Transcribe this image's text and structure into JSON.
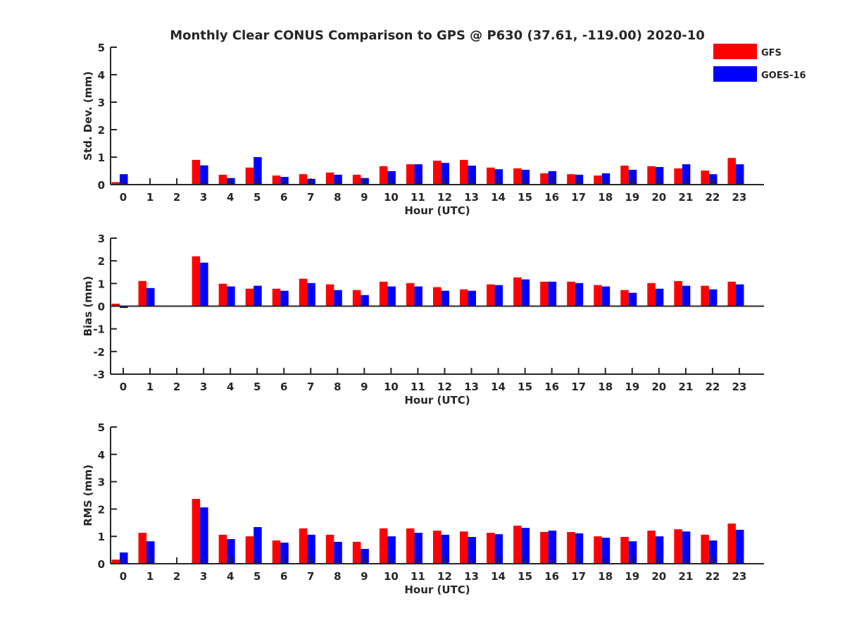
{
  "title": "Monthly Clear CONUS Comparison to GPS @ P630 (37.61, -119.00) 2020-10",
  "colors": {
    "GFS": "#ff0000",
    "GOES-16": "#0000ff",
    "axis": "#262626"
  },
  "legend": {
    "placement": "top-right",
    "entries": [
      "GFS",
      "GOES-16"
    ]
  },
  "chart_data": [
    {
      "type": "bar",
      "ylabel": "Std. Dev. (mm)",
      "xlabel": "Hour (UTC)",
      "ylim": [
        0,
        5
      ],
      "yticks": [
        "0",
        "1",
        "2",
        "3",
        "4",
        "5"
      ],
      "categories": [
        "0",
        "1",
        "2",
        "3",
        "4",
        "5",
        "6",
        "7",
        "8",
        "9",
        "10",
        "11",
        "12",
        "13",
        "14",
        "15",
        "16",
        "17",
        "18",
        "19",
        "20",
        "21",
        "22",
        "23"
      ],
      "series": [
        {
          "name": "GFS",
          "values": [
            0.09,
            null,
            null,
            0.9,
            0.36,
            0.62,
            0.33,
            0.38,
            0.44,
            0.36,
            0.67,
            0.74,
            0.87,
            0.9,
            0.62,
            0.59,
            0.41,
            0.38,
            0.33,
            0.69,
            0.67,
            0.59,
            0.51,
            0.97
          ]
        },
        {
          "name": "GOES-16",
          "values": [
            0.38,
            null,
            null,
            0.7,
            0.24,
            1.0,
            0.28,
            0.21,
            0.36,
            0.24,
            0.49,
            0.74,
            0.79,
            0.69,
            0.56,
            0.54,
            0.49,
            0.36,
            0.41,
            0.54,
            0.64,
            0.74,
            0.38,
            0.74
          ]
        }
      ]
    },
    {
      "type": "bar",
      "ylabel": "Bias (mm)",
      "xlabel": "Hour (UTC)",
      "ylim": [
        -3,
        3
      ],
      "yticks": [
        "-3",
        "-2",
        "-1",
        "0",
        "1",
        "2",
        "3"
      ],
      "categories": [
        "0",
        "1",
        "2",
        "3",
        "4",
        "5",
        "6",
        "7",
        "8",
        "9",
        "10",
        "11",
        "12",
        "13",
        "14",
        "15",
        "16",
        "17",
        "18",
        "19",
        "20",
        "21",
        "22",
        "23"
      ],
      "series": [
        {
          "name": "GFS",
          "values": [
            0.11,
            1.11,
            null,
            2.2,
            0.99,
            0.77,
            0.77,
            1.21,
            0.96,
            0.71,
            1.08,
            1.02,
            0.84,
            0.74,
            0.96,
            1.27,
            1.08,
            1.08,
            0.93,
            0.71,
            1.02,
            1.11,
            0.9,
            1.08
          ]
        },
        {
          "name": "GOES-16",
          "values": [
            -0.08,
            0.8,
            null,
            1.92,
            0.87,
            0.9,
            0.68,
            1.02,
            0.71,
            0.49,
            0.87,
            0.87,
            0.68,
            0.68,
            0.93,
            1.18,
            1.08,
            1.02,
            0.87,
            0.59,
            0.77,
            0.9,
            0.74,
            0.96
          ]
        }
      ]
    },
    {
      "type": "bar",
      "ylabel": "RMS (mm)",
      "xlabel": "Hour (UTC)",
      "ylim": [
        0,
        5
      ],
      "yticks": [
        "0",
        "1",
        "2",
        "3",
        "4",
        "5"
      ],
      "categories": [
        "0",
        "1",
        "2",
        "3",
        "4",
        "5",
        "6",
        "7",
        "8",
        "9",
        "10",
        "11",
        "12",
        "13",
        "14",
        "15",
        "16",
        "17",
        "18",
        "19",
        "20",
        "21",
        "22",
        "23"
      ],
      "series": [
        {
          "name": "GFS",
          "values": [
            0.15,
            1.13,
            null,
            2.37,
            1.06,
            1.0,
            0.85,
            1.29,
            1.06,
            0.8,
            1.29,
            1.29,
            1.21,
            1.18,
            1.13,
            1.39,
            1.16,
            1.16,
            1.0,
            0.98,
            1.21,
            1.26,
            1.06,
            1.47
          ]
        },
        {
          "name": "GOES-16",
          "values": [
            0.41,
            0.82,
            null,
            2.06,
            0.9,
            1.34,
            0.77,
            1.06,
            0.8,
            0.54,
            1.0,
            1.13,
            1.06,
            0.98,
            1.08,
            1.31,
            1.21,
            1.11,
            0.95,
            0.82,
            1.0,
            1.18,
            0.85,
            1.24
          ]
        }
      ]
    }
  ]
}
